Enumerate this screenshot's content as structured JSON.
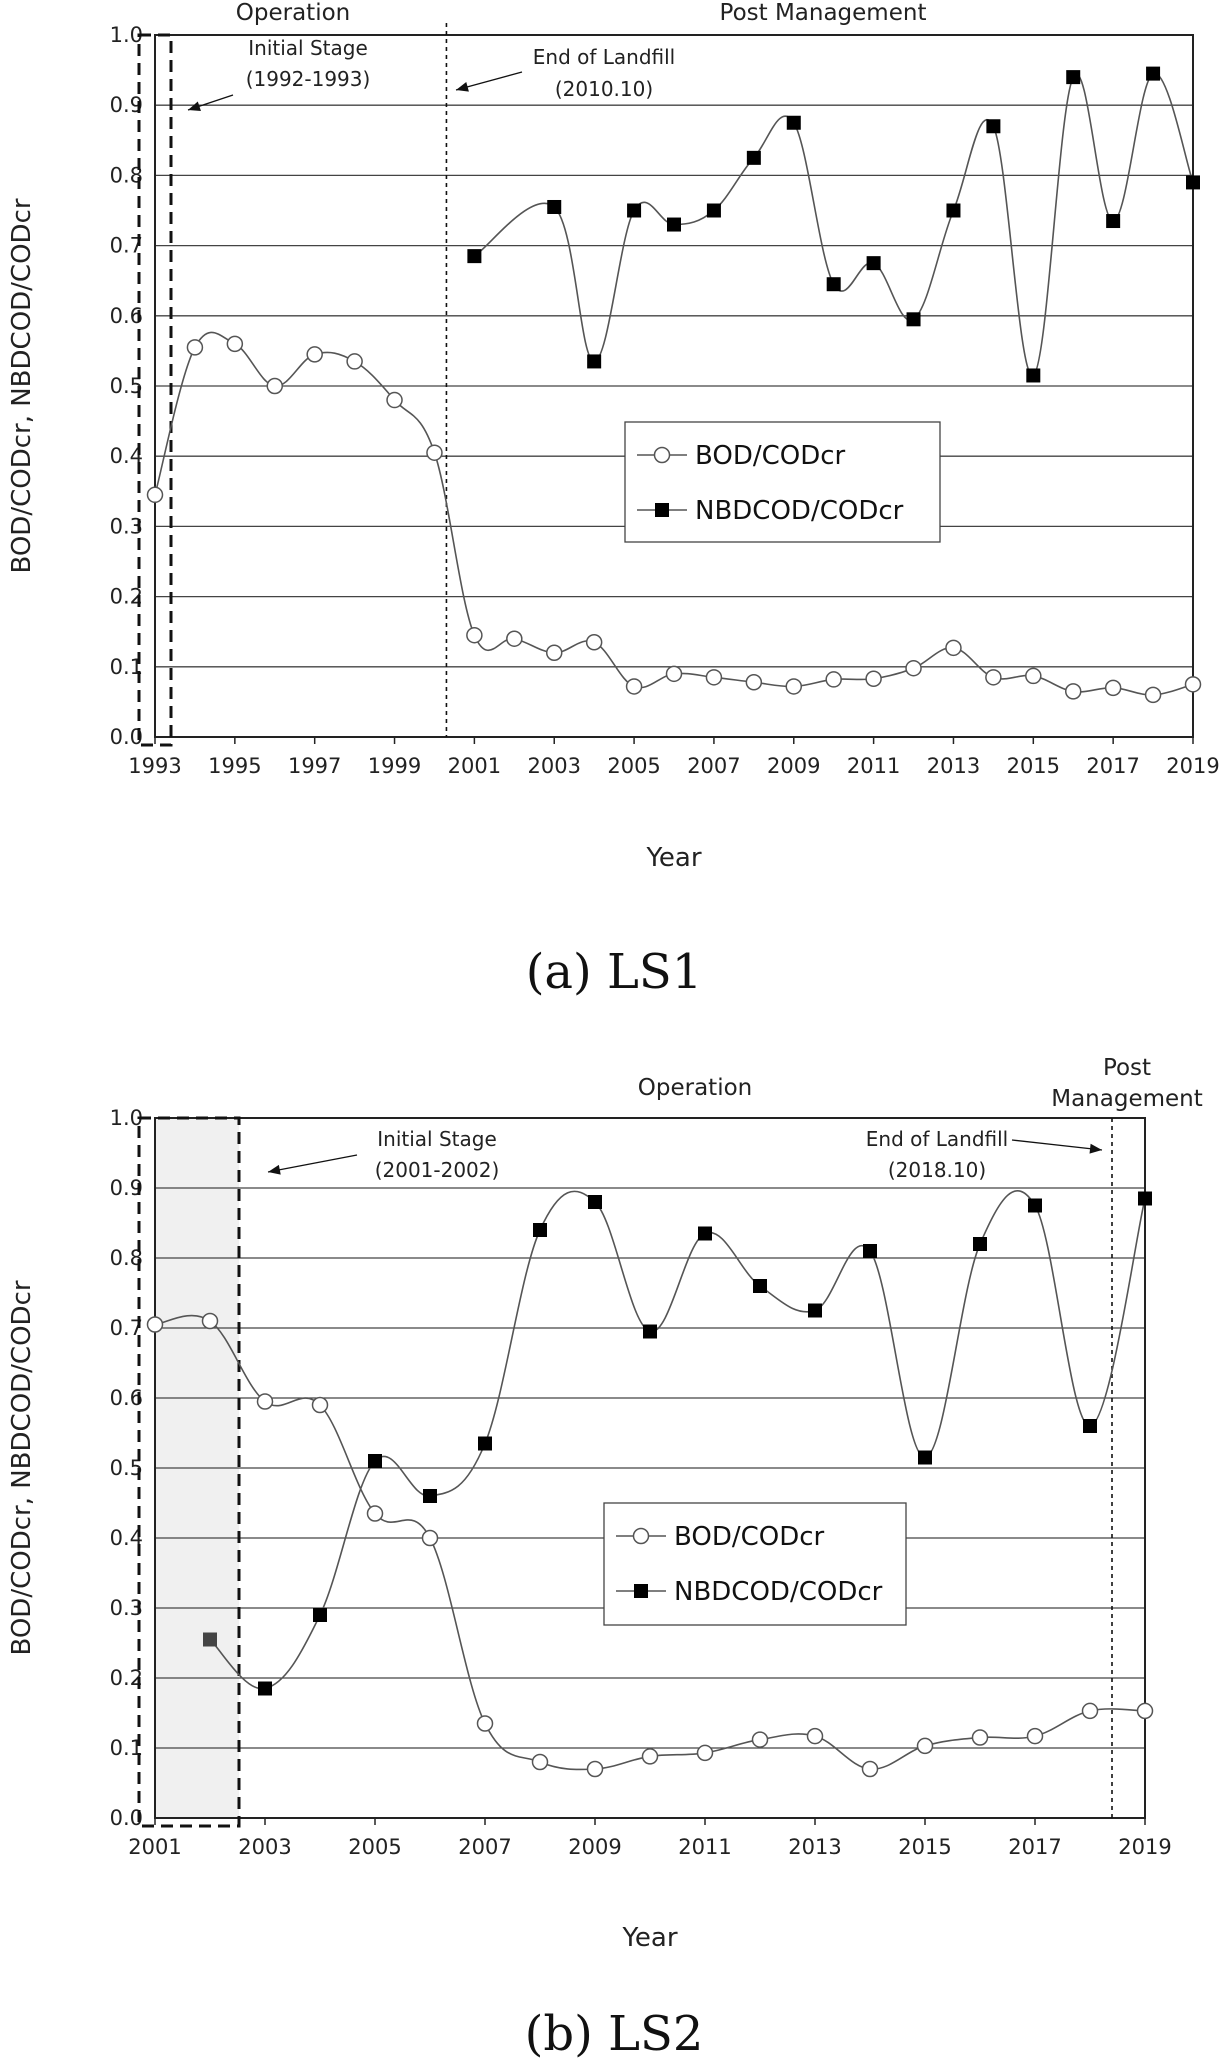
{
  "chart_data": [
    {
      "type": "line",
      "caption": "(a) LS1",
      "xlabel": "Year",
      "ylabel": "BOD/CODcr, NBDCOD/CODcr",
      "xlim": [
        1993,
        2019
      ],
      "ylim": [
        0,
        1.0
      ],
      "x_ticks": [
        1993,
        1995,
        1997,
        1999,
        2001,
        2003,
        2005,
        2007,
        2009,
        2011,
        2013,
        2015,
        2017,
        2019
      ],
      "y_ticks": [
        "0.0",
        "0.1",
        "0.2",
        "0.3",
        "0.4",
        "0.5",
        "0.6",
        "0.7",
        "0.8",
        "0.9",
        "1.0"
      ],
      "grid": true,
      "legend": "center-right",
      "phases": [
        {
          "label": "Operation"
        },
        {
          "label": "Post Management"
        }
      ],
      "annotations": [
        {
          "line1": "Initial Stage",
          "line2": "(1992-1993)"
        },
        {
          "line1": "End of Landfill",
          "line2": "(2010.10)"
        }
      ],
      "series": [
        {
          "name": "BOD/CODcr",
          "marker": "open-circle",
          "x": [
            1993,
            1994,
            1995,
            1996,
            1997,
            1998,
            1999,
            2000,
            2001,
            2002,
            2003,
            2004,
            2005,
            2006,
            2007,
            2008,
            2009,
            2010,
            2011,
            2012,
            2013,
            2014,
            2015,
            2016,
            2017,
            2018,
            2019
          ],
          "values": [
            0.345,
            0.555,
            0.56,
            0.5,
            0.545,
            0.535,
            0.48,
            0.405,
            0.145,
            0.14,
            0.12,
            0.135,
            0.072,
            0.09,
            0.085,
            0.078,
            0.072,
            0.082,
            0.083,
            0.098,
            0.127,
            0.085,
            0.087,
            0.065,
            0.07,
            0.06,
            0.075
          ]
        },
        {
          "name": "NBDCOD/CODcr",
          "marker": "filled-square",
          "x": [
            2001,
            2003,
            2004,
            2005,
            2006,
            2007,
            2008,
            2009,
            2010,
            2011,
            2012,
            2013,
            2014,
            2015,
            2016,
            2017,
            2018,
            2019
          ],
          "values": [
            0.685,
            0.755,
            0.535,
            0.75,
            0.73,
            0.75,
            0.825,
            0.875,
            0.645,
            0.675,
            0.595,
            0.75,
            0.87,
            0.515,
            0.94,
            0.735,
            0.945,
            0.79
          ]
        }
      ]
    },
    {
      "type": "line",
      "caption": "(b) LS2",
      "xlabel": "Year",
      "ylabel": "BOD/CODcr, NBDCOD/CODcr",
      "xlim": [
        2001,
        2019
      ],
      "ylim": [
        0,
        1.0
      ],
      "x_ticks": [
        2001,
        2003,
        2005,
        2007,
        2009,
        2011,
        2013,
        2015,
        2017,
        2019
      ],
      "y_ticks": [
        "0.0",
        "0.1",
        "0.2",
        "0.3",
        "0.4",
        "0.5",
        "0.6",
        "0.7",
        "0.8",
        "0.9",
        "1.0"
      ],
      "grid": true,
      "legend": "center",
      "phases": [
        {
          "label": "Operation"
        },
        {
          "label": "Post",
          "label2": "Management"
        }
      ],
      "annotations": [
        {
          "line1": "Initial Stage",
          "line2": "(2001-2002)"
        },
        {
          "line1": "End of Landfill",
          "line2": "(2018.10)"
        }
      ],
      "series": [
        {
          "name": "BOD/CODcr",
          "marker": "open-circle",
          "x": [
            2001,
            2002,
            2003,
            2004,
            2005,
            2006,
            2007,
            2008,
            2009,
            2010,
            2011,
            2012,
            2013,
            2014,
            2015,
            2016,
            2017,
            2018,
            2019
          ],
          "values": [
            0.705,
            0.71,
            0.595,
            0.59,
            0.435,
            0.4,
            0.135,
            0.08,
            0.07,
            0.088,
            0.093,
            0.112,
            0.117,
            0.07,
            0.103,
            0.115,
            0.117,
            0.153,
            0.153
          ]
        },
        {
          "name": "NBDCOD/CODcr",
          "marker": "filled-square",
          "x": [
            2002,
            2003,
            2004,
            2005,
            2006,
            2007,
            2008,
            2009,
            2010,
            2011,
            2012,
            2013,
            2014,
            2015,
            2016,
            2017,
            2018,
            2019
          ],
          "values": [
            0.255,
            0.185,
            0.29,
            0.51,
            0.46,
            0.535,
            0.84,
            0.88,
            0.695,
            0.835,
            0.76,
            0.725,
            0.81,
            0.515,
            0.82,
            0.875,
            0.56,
            0.885
          ]
        }
      ]
    }
  ]
}
